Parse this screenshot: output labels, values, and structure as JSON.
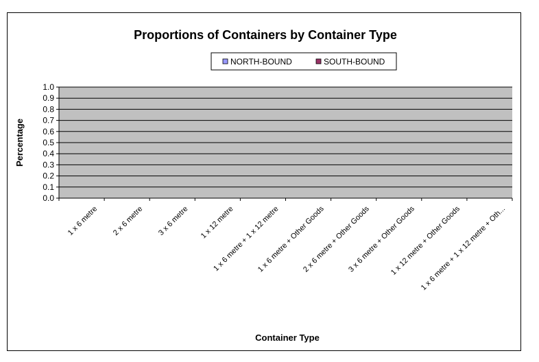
{
  "chart_data": {
    "type": "bar",
    "title": "Proportions of Containers by Container Type",
    "xlabel": "Container Type",
    "ylabel": "Percentage",
    "ylim": [
      0,
      1.0
    ],
    "yticks": [
      "0.0",
      "0.1",
      "0.2",
      "0.3",
      "0.4",
      "0.5",
      "0.6",
      "0.7",
      "0.8",
      "0.9",
      "1.0"
    ],
    "grid": true,
    "legend_position": "top",
    "categories": [
      "1 x 6 metre",
      "2 x 6 metre",
      "3 x 6 metre",
      "1 x 12 metre",
      "1 x 6 metre + 1 x 12 metre",
      "1 x 6 metre + Other Goods",
      "2 x 6 metre + Other Goods",
      "3 x 6 metre + Other Goods",
      "1 x 12 metre + Other Goods",
      "1 x 6 metre + 1 x 12 metre + Oth..."
    ],
    "series": [
      {
        "name": "NORTH-BOUND",
        "color": "#9999ff",
        "values": [
          0,
          0,
          0,
          0,
          0,
          0,
          0,
          0,
          0,
          0
        ]
      },
      {
        "name": "SOUTH-BOUND",
        "color": "#993366",
        "values": [
          0,
          0,
          0,
          0,
          0,
          0,
          0,
          0,
          0,
          0
        ]
      }
    ],
    "plot_background": "#c0c0c0"
  }
}
